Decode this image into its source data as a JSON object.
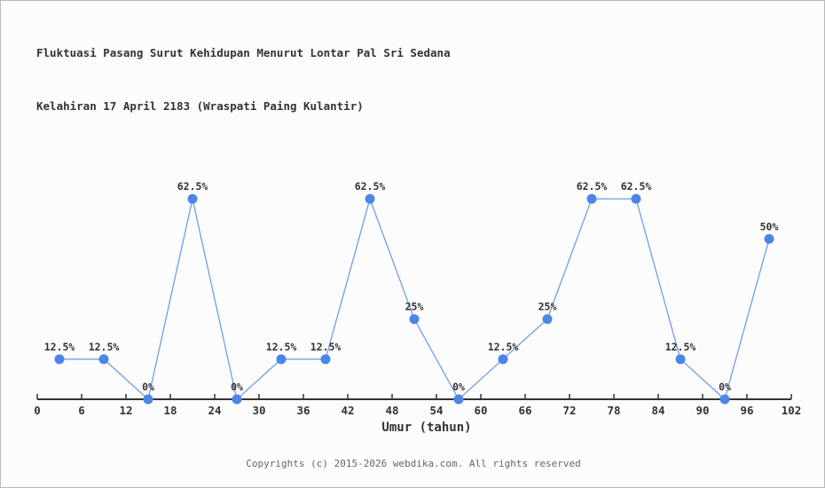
{
  "title": {
    "line1": "Fluktuasi Pasang Surut Kehidupan Menurut Lontar Pal Sri Sedana",
    "line2": "Kelahiran 17 April 2183 (Wraspati Paing Kulantir)"
  },
  "chart_data": {
    "type": "line",
    "title": "Fluktuasi Pasang Surut Kehidupan Menurut Lontar Pal Sri Sedana Kelahiran 17 April 2183 (Wraspati Paing Kulantir)",
    "x": [
      3,
      9,
      15,
      21,
      27,
      33,
      39,
      45,
      51,
      57,
      63,
      69,
      75,
      81,
      87,
      93,
      99
    ],
    "values": [
      12.5,
      12.5,
      0,
      62.5,
      0,
      12.5,
      12.5,
      62.5,
      25,
      0,
      12.5,
      25,
      62.5,
      62.5,
      12.5,
      0,
      50
    ],
    "point_labels": [
      "12.5%",
      "12.5%",
      "0%",
      "62.5%",
      "0%",
      "12.5%",
      "12.5%",
      "62.5%",
      "25%",
      "0%",
      "12.5%",
      "25%",
      "62.5%",
      "62.5%",
      "12.5%",
      "0%",
      "50%"
    ],
    "xlabel": "Umur (tahun)",
    "ylabel": "",
    "x_ticks": [
      0,
      6,
      12,
      18,
      24,
      30,
      36,
      42,
      48,
      54,
      60,
      66,
      72,
      78,
      84,
      90,
      96,
      102
    ],
    "xlim": [
      0,
      102
    ],
    "ylim": [
      0,
      70
    ],
    "grid": false,
    "legend": "none",
    "colors": {
      "line": "#6d9eeb",
      "marker": "#4a86e8",
      "axis": "#333333",
      "tick_label": "#333333",
      "point_label": "#333333",
      "background": "#fcfcfc",
      "border": "#b9b9b9"
    }
  },
  "footer": {
    "text": "Copyrights (c) 2015-2026 webdika.com. All rights reserved"
  }
}
